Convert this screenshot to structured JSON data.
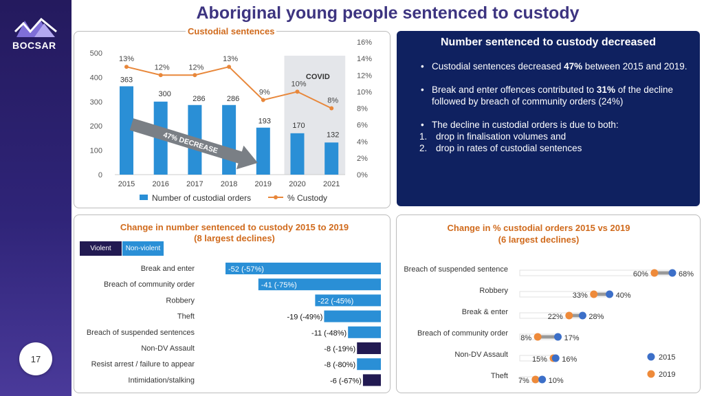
{
  "page_title": "Aboriginal young people sentenced to custody",
  "logo_text": "BOCSAR",
  "page_number": "17",
  "colors": {
    "bar_blue": "#2a8fd6",
    "line_orange": "#e8873a",
    "navy": "#0f2160",
    "violent": "#221a52",
    "dot_2015": "#3c6fc8",
    "dot_2019": "#ee8a3a"
  },
  "top_chart_title": "Custodial sentences",
  "right_panel": {
    "title": "Number sentenced to custody decreased",
    "bullet1_pre": "Custodial sentences decreased ",
    "bullet1_bold": "47%",
    "bullet1_post": " between 2015 and 2019.",
    "bullet2_pre": "Break and enter offences contributed to ",
    "bullet2_bold": "31%",
    "bullet2_post": " of the decline followed by breach of community orders (24%)",
    "bullet3": "The decline in custodial orders is due to both:",
    "sub1_num": "1.",
    "sub1": "drop in finalisation volumes and",
    "sub2_num": "2.",
    "sub2": "drop in rates of custodial sentences"
  },
  "bottom_left_title1": "Change in number sentenced to custody 2015 to 2019",
  "bottom_left_title2": "(8 largest declines)",
  "bottom_left_legend": {
    "violent": "Violent",
    "nonviolent": "Non-violent"
  },
  "bottom_right_title1": "Change in % custodial orders 2015 vs 2019",
  "bottom_right_title2": "(6 largest declines)",
  "chart_data": [
    {
      "type": "bar",
      "title": "Custodial sentences",
      "categories": [
        "2015",
        "2016",
        "2017",
        "2018",
        "2019",
        "2020",
        "2021"
      ],
      "series": [
        {
          "name": "Number of custodial orders",
          "kind": "bar",
          "axis": "left",
          "values": [
            363,
            300,
            286,
            286,
            193,
            170,
            132
          ]
        },
        {
          "name": "% Custody",
          "kind": "line",
          "axis": "right",
          "values": [
            13,
            12,
            12,
            13,
            9,
            10,
            8
          ],
          "labels": [
            "13%",
            "12%",
            "12%",
            "13%",
            "9%",
            "10%",
            "8%"
          ]
        }
      ],
      "ylim": [
        0,
        500
      ],
      "yticks": [
        "0",
        "100",
        "200",
        "300",
        "400",
        "500"
      ],
      "y2lim": [
        0,
        16
      ],
      "y2ticks": [
        "0%",
        "2%",
        "4%",
        "6%",
        "8%",
        "10%",
        "12%",
        "14%",
        "16%"
      ],
      "annotations": {
        "covid": "COVID",
        "arrow": "47% DECREASE"
      },
      "legend_position": "bottom"
    },
    {
      "type": "bar",
      "orientation": "horizontal",
      "categories": [
        "Break and enter",
        "Breach of community order",
        "Robbery",
        "Theft",
        "Breach of suspended sentences",
        "Non-DV Assault",
        "Resist arrest / failure to appear",
        "Intimidation/stalking"
      ],
      "values": [
        -52,
        -41,
        -22,
        -19,
        -11,
        -8,
        -8,
        -6
      ],
      "labels": [
        "-52 (-57%)",
        "-41 (-75%)",
        "-22 (-45%)",
        "-19 (-49%)",
        "-11 (-48%)",
        "-8 (-19%)",
        "-8 (-80%)",
        "-6 (-67%)"
      ],
      "group": [
        "Non-violent",
        "Non-violent",
        "Non-violent",
        "Non-violent",
        "Non-violent",
        "Violent",
        "Non-violent",
        "Violent"
      ]
    },
    {
      "type": "scatter",
      "style": "dumbbell",
      "categories": [
        "Breach of suspended sentence",
        "Robbery",
        "Break & enter",
        "Breach of community order",
        "Non-DV Assault",
        "Theft"
      ],
      "series": [
        {
          "name": "2015",
          "values": [
            68,
            40,
            28,
            17,
            16,
            10
          ],
          "labels": [
            "68%",
            "40%",
            "28%",
            "17%",
            "16%",
            "10%"
          ]
        },
        {
          "name": "2019",
          "values": [
            60,
            33,
            22,
            8,
            15,
            7
          ],
          "labels": [
            "60%",
            "33%",
            "22%",
            "8%",
            "15%",
            "7%"
          ]
        }
      ],
      "xlim": [
        0,
        72
      ],
      "legend_position": "bottom-right"
    }
  ]
}
